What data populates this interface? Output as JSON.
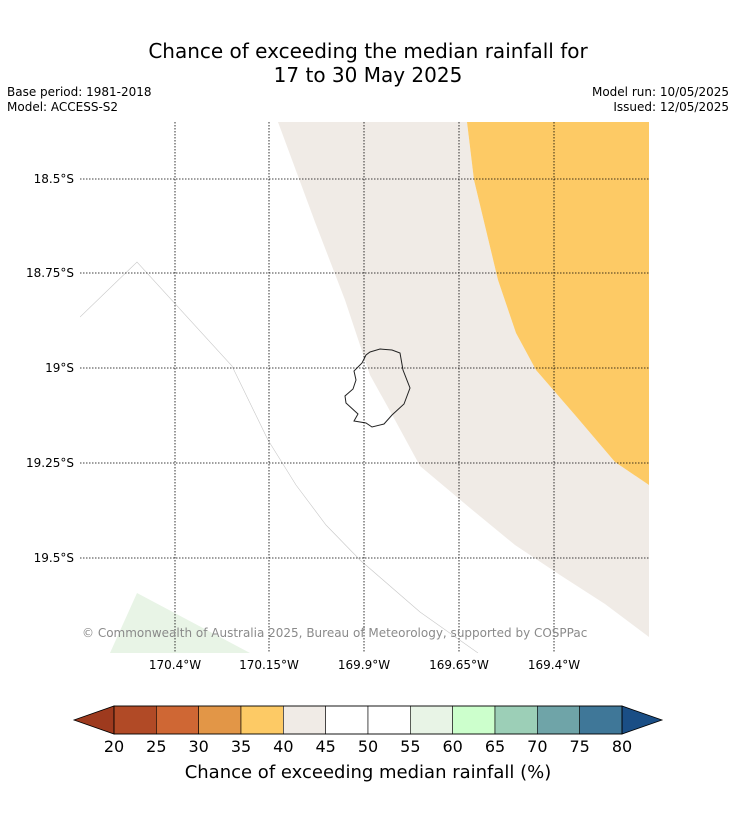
{
  "header": {
    "title_line1": "Chance of exceeding the median rainfall for",
    "title_line2": "17 to 30 May 2025",
    "base_period": "Base period: 1981-2018",
    "model": "Model: ACCESS-S2",
    "model_run": "Model run: 10/05/2025",
    "issued": "Issued: 12/05/2025"
  },
  "map": {
    "lat_labels": [
      "18.5°S",
      "18.75°S",
      "19°S",
      "19.25°S",
      "19.5°S"
    ],
    "lon_labels": [
      "170.4°W",
      "170.15°W",
      "169.9°W",
      "169.65°W",
      "169.4°W"
    ],
    "copyright": "© Commonwealth of Australia 2025, Bureau of Meteorology, supported by COSPPac",
    "zones": [
      {
        "category": "40-45",
        "color": "#f0ebe6"
      },
      {
        "category": "35-40",
        "color": "#fdca65"
      },
      {
        "category": "55-60",
        "color": "#e8f4e6"
      }
    ],
    "gridlines": "dotted"
  },
  "colorbar": {
    "title": "Chance of exceeding median rainfall (%)",
    "ticks": [
      "20",
      "25",
      "30",
      "35",
      "40",
      "45",
      "50",
      "55",
      "60",
      "65",
      "70",
      "75",
      "80"
    ],
    "under_color": "#9e3a1e",
    "over_color": "#1a4e85",
    "colors": [
      "#b14a26",
      "#cf6734",
      "#e29647",
      "#fdca65",
      "#f0ebe6",
      "#ffffff",
      "#ffffff",
      "#e8f4e6",
      "#ccffcc",
      "#9ccfb7",
      "#6fa4a8",
      "#3f7798"
    ]
  }
}
